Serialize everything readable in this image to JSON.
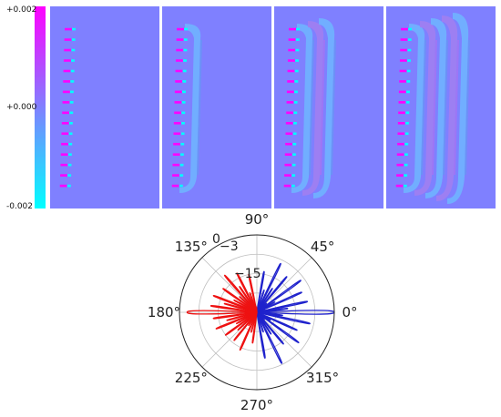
{
  "colors": {
    "background": "#7f80ff",
    "positive": "#ff00ff",
    "negative": "#00ffff",
    "pattern_positive": "#a27ff0",
    "pattern_negative": "#6fb6ff",
    "series_right": "#1f22cc",
    "series_left": "#ee1111",
    "grid": "#bfbfbf"
  },
  "colorbar": {
    "colormap": "cool",
    "max_label": "+0.002",
    "mid_label": "+0.000",
    "min_label": "-0.002"
  },
  "chart_data": [
    {
      "type": "heatmap",
      "description_panels": 4,
      "panels": [
        {
          "index": 1,
          "wavefronts": 0
        },
        {
          "index": 2,
          "wavefronts": 1
        },
        {
          "index": 3,
          "wavefronts": 3
        },
        {
          "index": 4,
          "wavefronts": 5
        }
      ],
      "source_elements": 16,
      "colorbar_range": [
        -0.002,
        0.002
      ],
      "colorbar_ticks": [
        "+0.002",
        "+0.000",
        "-0.002"
      ]
    },
    {
      "type": "line",
      "projection": "polar",
      "angle_ticks": [
        "90°",
        "45°",
        "0°",
        "315°",
        "270°",
        "225°",
        "180°",
        "135°"
      ],
      "radial_ticks": [
        "0",
        "−3",
        "−15"
      ],
      "grid": true,
      "series": [
        {
          "color": "#1f22cc",
          "main_lobe_deg": 0,
          "main_lobe_db": 0,
          "lobes": [
            [
              -88,
              -30
            ],
            [
              -80,
              -12
            ],
            [
              -72,
              -22
            ],
            [
              -64,
              -8
            ],
            [
              -57,
              -20
            ],
            [
              -50,
              -14
            ],
            [
              -43,
              -26
            ],
            [
              -36,
              -10
            ],
            [
              -30,
              -24
            ],
            [
              -24,
              -13
            ],
            [
              -18,
              -28
            ],
            [
              -12,
              -9
            ],
            [
              -7,
              -20
            ],
            [
              0,
              0
            ],
            [
              7,
              -18
            ],
            [
              12,
              -10
            ],
            [
              18,
              -27
            ],
            [
              24,
              -11
            ],
            [
              30,
              -22
            ],
            [
              36,
              -9
            ],
            [
              43,
              -25
            ],
            [
              50,
              -12
            ],
            [
              57,
              -19
            ],
            [
              64,
              -9
            ],
            [
              72,
              -21
            ],
            [
              80,
              -14
            ],
            [
              88,
              -30
            ]
          ]
        },
        {
          "color": "#ee1111",
          "main_lobe_deg": 180,
          "main_lobe_db": -3,
          "lobes": [
            [
              95,
              -28
            ],
            [
              102,
              -15
            ],
            [
              110,
              -22
            ],
            [
              117,
              -13
            ],
            [
              124,
              -18
            ],
            [
              131,
              -11
            ],
            [
              138,
              -21
            ],
            [
              145,
              -14
            ],
            [
              152,
              -20
            ],
            [
              159,
              -12
            ],
            [
              165,
              -17
            ],
            [
              172,
              -12
            ],
            [
              180,
              -3
            ],
            [
              188,
              -13
            ],
            [
              195,
              -18
            ],
            [
              202,
              -13
            ],
            [
              209,
              -21
            ],
            [
              216,
              -15
            ],
            [
              223,
              -20
            ],
            [
              231,
              -16
            ],
            [
              238,
              -24
            ],
            [
              246,
              -14
            ],
            [
              254,
              -22
            ],
            [
              262,
              -18
            ],
            [
              268,
              -30
            ]
          ]
        }
      ]
    }
  ]
}
